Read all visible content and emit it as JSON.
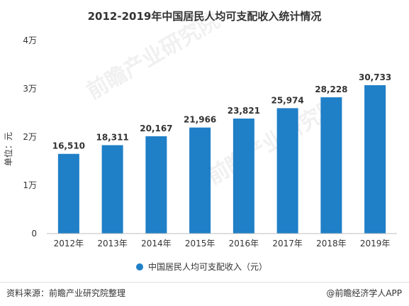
{
  "header": {
    "title": "2012-2019年中国居民人均可支配收入统计情况"
  },
  "watermark": {
    "brand": "前瞻产业研究院"
  },
  "footer": {
    "source": "资料来源：前瞻产业研究院整理",
    "credit": "@前瞻经济学人APP"
  },
  "colors": {
    "bar": "#1f7fc7",
    "axis": "#bfbfbf",
    "text": "#333333"
  },
  "chart_data": {
    "type": "bar",
    "title": "2012-2019年中国居民人均可支配收入统计情况",
    "categories": [
      "2012年",
      "2013年",
      "2014年",
      "2015年",
      "2016年",
      "2017年",
      "2018年",
      "2019年"
    ],
    "series": [
      {
        "name": "中国居民人均可支配收入（元）",
        "values": [
          16510,
          18311,
          20167,
          21966,
          23821,
          25974,
          28228,
          30733
        ]
      }
    ],
    "data_labels": [
      "16,510",
      "18,311",
      "20,167",
      "21,966",
      "23,821",
      "25,974",
      "28,228",
      "30,733"
    ],
    "ylabel": "单位：元",
    "ylim": [
      0,
      40000
    ],
    "yticks": [
      {
        "value": 0,
        "label": "0"
      },
      {
        "value": 10000,
        "label": "1万"
      },
      {
        "value": 20000,
        "label": "2万"
      },
      {
        "value": 30000,
        "label": "3万"
      },
      {
        "value": 40000,
        "label": "4万"
      }
    ],
    "grid": false,
    "legend_position": "bottom"
  }
}
